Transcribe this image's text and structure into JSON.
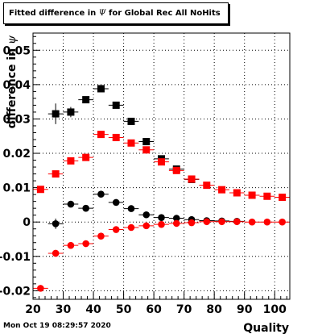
{
  "title": {
    "prefix": "Fitted difference in ",
    "symbol": "Ψ",
    "suffix": " for Global Rec All NoHits"
  },
  "timestamp": "Mon Oct 19 08:29:57 2020",
  "colors": {
    "series_black": "#000000",
    "series_red": "#ff0000",
    "grid": "#000000",
    "frame": "#000000"
  },
  "chart_data": {
    "type": "scatter",
    "title": "Fitted difference in Ψ for Global Rec All NoHits",
    "xlabel": "Quality",
    "ylabel_prefix": "difference in ",
    "ylabel_symbol": "ψ",
    "xlim": [
      20,
      105
    ],
    "ylim": [
      -0.0225,
      0.055
    ],
    "xticks": [
      20,
      30,
      40,
      50,
      60,
      70,
      80,
      90,
      100
    ],
    "xtick_labels": [
      "20",
      "30",
      "40",
      "50",
      "60",
      "70",
      "80",
      "90",
      "100"
    ],
    "yticks": [
      -0.02,
      -0.01,
      0,
      0.01,
      0.02,
      0.03,
      0.04,
      0.05
    ],
    "ytick_labels": [
      "-0.02",
      "-0.01",
      "0",
      "0.01",
      "0.02",
      "0.03",
      "0.04",
      "0.05"
    ],
    "grid": true,
    "x_half_width": 2.5,
    "series": [
      {
        "marker": "square",
        "color": "#000000",
        "points": [
          {
            "x": 27.5,
            "y": 0.0315,
            "err": 0.003
          },
          {
            "x": 32.5,
            "y": 0.032,
            "err": 0.0015
          },
          {
            "x": 37.5,
            "y": 0.0356,
            "err": 0.0008
          },
          {
            "x": 42.5,
            "y": 0.0388,
            "err": 0.0006
          },
          {
            "x": 47.5,
            "y": 0.034,
            "err": 0.0006
          },
          {
            "x": 52.5,
            "y": 0.0293,
            "err": 0.0005
          },
          {
            "x": 57.5,
            "y": 0.0234,
            "err": 0.0005
          },
          {
            "x": 62.5,
            "y": 0.0184,
            "err": 0.0004
          },
          {
            "x": 67.5,
            "y": 0.0154,
            "err": 0.0004
          },
          {
            "x": 72.5,
            "y": 0.0124,
            "err": 0.0003
          }
        ]
      },
      {
        "marker": "square",
        "color": "#ff0000",
        "points": [
          {
            "x": 22.5,
            "y": 0.0095,
            "err": 0.0006
          },
          {
            "x": 27.5,
            "y": 0.014,
            "err": 0.0005
          },
          {
            "x": 32.5,
            "y": 0.0178,
            "err": 0.0004
          },
          {
            "x": 37.5,
            "y": 0.0188,
            "err": 0.0004
          },
          {
            "x": 42.5,
            "y": 0.0255,
            "err": 0.0004
          },
          {
            "x": 47.5,
            "y": 0.0246,
            "err": 0.0004
          },
          {
            "x": 52.5,
            "y": 0.023,
            "err": 0.0003
          },
          {
            "x": 57.5,
            "y": 0.021,
            "err": 0.0003
          },
          {
            "x": 62.5,
            "y": 0.0175,
            "err": 0.0003
          },
          {
            "x": 67.5,
            "y": 0.015,
            "err": 0.0003
          },
          {
            "x": 72.5,
            "y": 0.0125,
            "err": 0.0003
          },
          {
            "x": 77.5,
            "y": 0.0107,
            "err": 0.0003
          },
          {
            "x": 82.5,
            "y": 0.0094,
            "err": 0.0003
          },
          {
            "x": 87.5,
            "y": 0.0085,
            "err": 0.0003
          },
          {
            "x": 92.5,
            "y": 0.0078,
            "err": 0.0003
          },
          {
            "x": 97.5,
            "y": 0.0075,
            "err": 0.0003
          },
          {
            "x": 102.5,
            "y": 0.0072,
            "err": 0.0003
          }
        ]
      },
      {
        "marker": "circle",
        "color": "#000000",
        "points": [
          {
            "x": 27.5,
            "y": -0.0005,
            "err": 0.0015
          },
          {
            "x": 32.5,
            "y": 0.0052,
            "err": 0.0008
          },
          {
            "x": 37.5,
            "y": 0.004,
            "err": 0.0006
          },
          {
            "x": 42.5,
            "y": 0.0081,
            "err": 0.0005
          },
          {
            "x": 47.5,
            "y": 0.0057,
            "err": 0.0004
          },
          {
            "x": 52.5,
            "y": 0.0039,
            "err": 0.0004
          },
          {
            "x": 57.5,
            "y": 0.0021,
            "err": 0.0003
          },
          {
            "x": 62.5,
            "y": 0.0013,
            "err": 0.0003
          },
          {
            "x": 67.5,
            "y": 0.0011,
            "err": 0.0003
          },
          {
            "x": 72.5,
            "y": 0.0007,
            "err": 0.0003
          },
          {
            "x": 77.5,
            "y": 0.0004,
            "err": 0.0003
          },
          {
            "x": 82.5,
            "y": 0.0003,
            "err": 0.0002
          },
          {
            "x": 87.5,
            "y": 0.0002,
            "err": 0.0002
          }
        ]
      },
      {
        "marker": "circle",
        "color": "#ff0000",
        "points": [
          {
            "x": 22.5,
            "y": -0.0193,
            "err": 0.0006
          },
          {
            "x": 27.5,
            "y": -0.0091,
            "err": 0.0005
          },
          {
            "x": 32.5,
            "y": -0.0068,
            "err": 0.0004
          },
          {
            "x": 37.5,
            "y": -0.0063,
            "err": 0.0004
          },
          {
            "x": 42.5,
            "y": -0.0041,
            "err": 0.0004
          },
          {
            "x": 47.5,
            "y": -0.0022,
            "err": 0.0003
          },
          {
            "x": 52.5,
            "y": -0.0016,
            "err": 0.0003
          },
          {
            "x": 57.5,
            "y": -0.0011,
            "err": 0.0003
          },
          {
            "x": 62.5,
            "y": -0.0007,
            "err": 0.0003
          },
          {
            "x": 67.5,
            "y": -0.0004,
            "err": 0.0002
          },
          {
            "x": 72.5,
            "y": -0.0002,
            "err": 0.0002
          },
          {
            "x": 77.5,
            "y": 0.0001,
            "err": 0.0002
          },
          {
            "x": 82.5,
            "y": 0.0001,
            "err": 0.0002
          },
          {
            "x": 87.5,
            "y": 0.0001,
            "err": 0.0002
          },
          {
            "x": 92.5,
            "y": 0.0,
            "err": 0.0002
          },
          {
            "x": 97.5,
            "y": 0.0,
            "err": 0.0002
          },
          {
            "x": 102.5,
            "y": 0.0,
            "err": 0.0002
          }
        ]
      }
    ]
  }
}
